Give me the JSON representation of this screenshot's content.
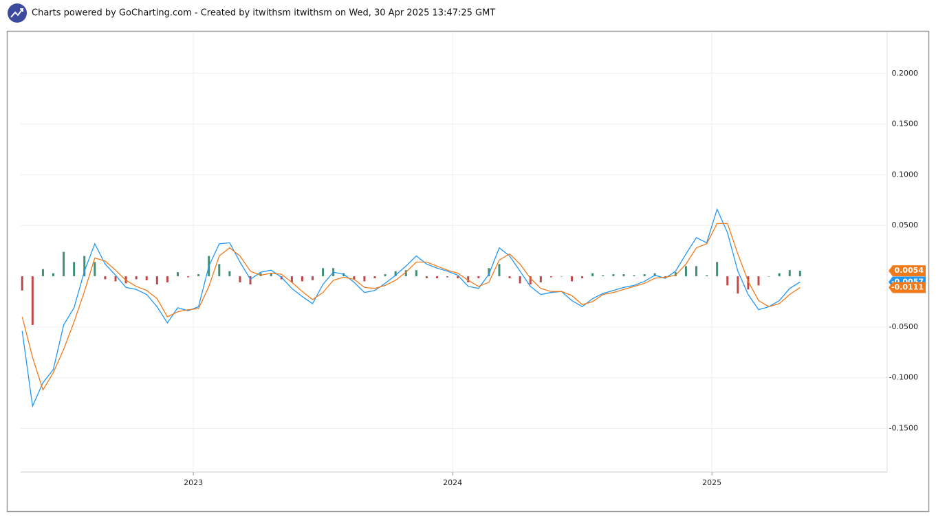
{
  "header": {
    "title": "Charts powered by GoCharting.com - Created by itwithsm itwithsm on Wed, 30 Apr 2025 13:47:25 GMT"
  },
  "chart_data": {
    "type": "macd",
    "x": [
      2022.34,
      2022.38,
      2022.42,
      2022.46,
      2022.5,
      2022.54,
      2022.58,
      2022.62,
      2022.66,
      2022.7,
      2022.74,
      2022.78,
      2022.82,
      2022.86,
      2022.9,
      2022.94,
      2022.98,
      2023.02,
      2023.06,
      2023.1,
      2023.14,
      2023.18,
      2023.22,
      2023.26,
      2023.3,
      2023.34,
      2023.38,
      2023.42,
      2023.46,
      2023.5,
      2023.54,
      2023.58,
      2023.62,
      2023.66,
      2023.7,
      2023.74,
      2023.78,
      2023.82,
      2023.86,
      2023.9,
      2023.94,
      2023.98,
      2024.02,
      2024.06,
      2024.1,
      2024.14,
      2024.18,
      2024.22,
      2024.26,
      2024.3,
      2024.34,
      2024.38,
      2024.42,
      2024.46,
      2024.5,
      2024.54,
      2024.58,
      2024.62,
      2024.66,
      2024.7,
      2024.74,
      2024.78,
      2024.82,
      2024.86,
      2024.9,
      2024.94,
      2024.98,
      2025.02,
      2025.06,
      2025.1,
      2025.14,
      2025.18,
      2025.22,
      2025.26,
      2025.3,
      2025.34
    ],
    "series": [
      {
        "name": "Histogram",
        "kind": "bar",
        "positive_color": "#1f7a5c",
        "negative_color": "#b52828",
        "values": [
          -0.014,
          -0.048,
          0.007,
          0.003,
          0.024,
          0.014,
          0.02,
          0.014,
          -0.003,
          -0.005,
          -0.007,
          -0.003,
          -0.004,
          -0.008,
          -0.006,
          0.004,
          -0.001,
          0.002,
          0.02,
          0.012,
          0.005,
          -0.006,
          -0.008,
          0.003,
          0.003,
          -0.003,
          -0.006,
          -0.005,
          -0.004,
          0.008,
          0.008,
          0.003,
          -0.003,
          -0.005,
          -0.002,
          0.002,
          0.005,
          0.006,
          0.006,
          -0.002,
          -0.002,
          -0.001,
          -0.002,
          -0.006,
          -0.002,
          0.008,
          0.012,
          -0.002,
          -0.007,
          -0.008,
          -0.006,
          -0.001,
          0.0,
          -0.005,
          -0.002,
          0.003,
          0.001,
          0.002,
          0.002,
          0.001,
          0.002,
          0.003,
          -0.001,
          0.004,
          0.01,
          0.01,
          0.001,
          0.014,
          -0.009,
          -0.017,
          -0.013,
          -0.009,
          0.0,
          0.003,
          0.006,
          0.0054
        ],
        "label_color": "#f07a1a"
      },
      {
        "name": "MACD",
        "kind": "line",
        "color": "#2196f3",
        "values": [
          -0.054,
          -0.128,
          -0.105,
          -0.092,
          -0.048,
          -0.031,
          0.005,
          0.032,
          0.012,
          0.001,
          -0.011,
          -0.013,
          -0.018,
          -0.03,
          -0.046,
          -0.031,
          -0.034,
          -0.03,
          0.01,
          0.032,
          0.033,
          0.014,
          -0.003,
          0.004,
          0.006,
          -0.001,
          -0.012,
          -0.02,
          -0.027,
          -0.008,
          0.004,
          0.002,
          -0.006,
          -0.016,
          -0.014,
          -0.007,
          0.001,
          0.01,
          0.02,
          0.012,
          0.008,
          0.005,
          0.001,
          -0.01,
          -0.012,
          0.002,
          0.028,
          0.02,
          0.005,
          -0.01,
          -0.018,
          -0.016,
          -0.015,
          -0.024,
          -0.03,
          -0.022,
          -0.017,
          -0.014,
          -0.011,
          -0.009,
          -0.005,
          0.001,
          -0.002,
          0.005,
          0.022,
          0.038,
          0.033,
          0.066,
          0.043,
          0.005,
          -0.018,
          -0.033,
          -0.03,
          -0.024,
          -0.012,
          -0.0057
        ],
        "label_color": "#2196f3"
      },
      {
        "name": "Signal",
        "kind": "line",
        "color": "#f07a1a",
        "values": [
          -0.04,
          -0.08,
          -0.112,
          -0.095,
          -0.072,
          -0.045,
          -0.015,
          0.018,
          0.015,
          0.006,
          -0.004,
          -0.01,
          -0.014,
          -0.022,
          -0.04,
          -0.035,
          -0.033,
          -0.032,
          -0.01,
          0.02,
          0.028,
          0.02,
          0.005,
          0.001,
          0.003,
          0.002,
          -0.006,
          -0.015,
          -0.023,
          -0.016,
          -0.004,
          -0.001,
          -0.003,
          -0.011,
          -0.012,
          -0.009,
          -0.004,
          0.004,
          0.014,
          0.014,
          0.01,
          0.006,
          0.003,
          -0.004,
          -0.01,
          -0.006,
          0.016,
          0.022,
          0.012,
          -0.002,
          -0.012,
          -0.015,
          -0.015,
          -0.019,
          -0.028,
          -0.025,
          -0.018,
          -0.016,
          -0.013,
          -0.01,
          -0.007,
          -0.002,
          -0.001,
          0.001,
          0.012,
          0.028,
          0.032,
          0.052,
          0.052,
          0.022,
          -0.005,
          -0.024,
          -0.03,
          -0.027,
          -0.018,
          -0.0111
        ],
        "label_color": "#f07a1a"
      }
    ],
    "xlim": [
      2022.334,
      2025.676
    ],
    "xticks": [
      2023,
      2024,
      2025
    ],
    "ylim": [
      -0.193,
      0.2405
    ],
    "yticks": [
      {
        "value": -0.15,
        "label": "-0.1500"
      },
      {
        "value": -0.1,
        "label": "-0.1000"
      },
      {
        "value": -0.05,
        "label": "-0.0500"
      },
      {
        "value": 0.05,
        "label": "0.0500"
      },
      {
        "value": 0.1,
        "label": "0.1000"
      },
      {
        "value": 0.15,
        "label": "0.1500"
      },
      {
        "value": 0.2,
        "label": "0.2000"
      }
    ],
    "grid": true
  }
}
